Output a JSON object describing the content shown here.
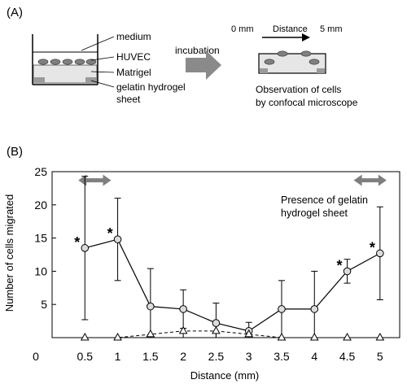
{
  "panel_a": {
    "label": "(A)",
    "well_labels": {
      "medium": "medium",
      "cells": "HUVEC",
      "gel": "Matrigel",
      "sheet": "gelatin hydrogel sheet"
    },
    "arrow_label": "incubation",
    "distance": {
      "start": "0 mm",
      "label": "Distance",
      "end": "5 mm"
    },
    "observation_caption": [
      "Observation of cells",
      "by confocal microscope"
    ],
    "colors": {
      "arrow": "#8a8a8a",
      "gel": "#e6e6e6",
      "sheet": "#9a9a9a",
      "cell": "#808080"
    }
  },
  "panel_b": {
    "label": "(B)",
    "annotation": [
      "Presence of gelatin",
      "hydrogel sheet"
    ]
  },
  "chart_data": {
    "type": "line",
    "xlabel": "Distance (mm)",
    "ylabel": "Number of cells migrated",
    "x_ticks": [
      "0",
      "0.5",
      "1",
      "1.5",
      "2",
      "2.5",
      "3",
      "3.5",
      "4",
      "4.5",
      "5"
    ],
    "y_ticks": [
      "25",
      "20",
      "15",
      "10",
      "5"
    ],
    "xlim": [
      0,
      5.3
    ],
    "ylim": [
      0,
      25
    ],
    "grid": false,
    "x": [
      0.5,
      1,
      1.5,
      2,
      2.5,
      3,
      3.5,
      4,
      4.5,
      5
    ],
    "series": [
      {
        "marker": "circle",
        "line": "solid",
        "values": [
          13.5,
          14.8,
          4.7,
          4.3,
          2.2,
          1.0,
          4.3,
          4.3,
          10.0,
          12.7
        ],
        "error": [
          10.8,
          6.2,
          5.7,
          2.9,
          3.0,
          1.3,
          4.3,
          5.7,
          1.8,
          7.0
        ],
        "significant": [
          true,
          true,
          false,
          false,
          false,
          false,
          false,
          false,
          true,
          true
        ]
      },
      {
        "marker": "triangle",
        "line": "dashed",
        "values": [
          0.0,
          0.0,
          0.5,
          1.0,
          1.0,
          0.5,
          0.0,
          0.0,
          0.0,
          0.0
        ]
      }
    ],
    "significance_marker": "*",
    "sheet_regions": [
      [
        0.4,
        0.9
      ],
      [
        4.6,
        5.1
      ]
    ],
    "colors": {
      "circle_fill": "#dcdcdc",
      "sheet_arrow": "#7f7f7f",
      "dashed": "#000000"
    }
  }
}
